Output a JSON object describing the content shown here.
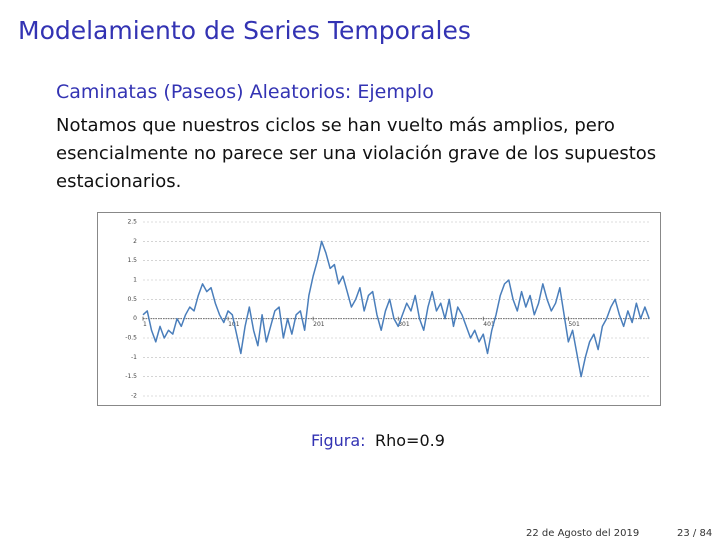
{
  "header": {
    "title": "Modelamiento de Series Temporales"
  },
  "subtitle": "Caminatas (Paseos) Aleatorios: Ejemplo",
  "body_lines": [
    "Notamos que nuestros ciclos se han vuelto más amplios, pero",
    "esencialmente no parece ser una violación grave de los supuestos",
    "estacionarios."
  ],
  "figure": {
    "chart_data": {
      "type": "line",
      "color": "#4a7ebb",
      "x": [
        1,
        6,
        11,
        16,
        21,
        26,
        31,
        36,
        41,
        46,
        51,
        56,
        61,
        66,
        71,
        76,
        81,
        86,
        91,
        96,
        101,
        106,
        111,
        116,
        121,
        126,
        131,
        136,
        141,
        146,
        151,
        156,
        161,
        166,
        171,
        176,
        181,
        186,
        191,
        196,
        201,
        206,
        211,
        216,
        221,
        226,
        231,
        236,
        241,
        246,
        251,
        256,
        261,
        266,
        271,
        276,
        281,
        286,
        291,
        296,
        301,
        306,
        311,
        316,
        321,
        326,
        331,
        336,
        341,
        346,
        351,
        356,
        361,
        366,
        371,
        376,
        381,
        386,
        391,
        396,
        401,
        406,
        411,
        416,
        421,
        426,
        431,
        436,
        441,
        446,
        451,
        456,
        461,
        466,
        471,
        476,
        481,
        486,
        491,
        496,
        501,
        506,
        511,
        516,
        521,
        526,
        531,
        536,
        541,
        546,
        551,
        556,
        561,
        566,
        571,
        576,
        581,
        586,
        591,
        596
      ],
      "values": [
        0.1,
        0.2,
        -0.3,
        -0.6,
        -0.2,
        -0.5,
        -0.3,
        -0.4,
        0.0,
        -0.2,
        0.1,
        0.3,
        0.2,
        0.6,
        0.9,
        0.7,
        0.8,
        0.4,
        0.1,
        -0.1,
        0.2,
        0.1,
        -0.4,
        -0.9,
        -0.2,
        0.3,
        -0.3,
        -0.7,
        0.1,
        -0.6,
        -0.2,
        0.2,
        0.3,
        -0.5,
        0.0,
        -0.4,
        0.1,
        0.2,
        -0.3,
        0.6,
        1.1,
        1.5,
        2.0,
        1.7,
        1.3,
        1.4,
        0.9,
        1.1,
        0.7,
        0.3,
        0.5,
        0.8,
        0.2,
        0.6,
        0.7,
        0.1,
        -0.3,
        0.2,
        0.5,
        0.0,
        -0.2,
        0.1,
        0.4,
        0.2,
        0.6,
        0.0,
        -0.3,
        0.3,
        0.7,
        0.2,
        0.4,
        0.0,
        0.5,
        -0.2,
        0.3,
        0.1,
        -0.2,
        -0.5,
        -0.3,
        -0.6,
        -0.4,
        -0.9,
        -0.3,
        0.1,
        0.6,
        0.9,
        1.0,
        0.5,
        0.2,
        0.7,
        0.3,
        0.6,
        0.1,
        0.4,
        0.9,
        0.5,
        0.2,
        0.4,
        0.8,
        0.1,
        -0.6,
        -0.3,
        -0.9,
        -1.5,
        -1.0,
        -0.6,
        -0.4,
        -0.8,
        -0.2,
        0.0,
        0.3,
        0.5,
        0.1,
        -0.2,
        0.2,
        -0.1,
        0.4,
        0.0,
        0.3,
        0.0
      ],
      "xlim": [
        1,
        597
      ],
      "xticks": [
        1,
        101,
        201,
        301,
        401,
        501
      ],
      "ylim": [
        -2,
        2.5
      ],
      "yticks": [
        2.5,
        2,
        1.5,
        1,
        0.5,
        0,
        -0.5,
        -1,
        -1.5,
        -2
      ],
      "grid": true
    },
    "caption_label": "Figura:",
    "caption": "Rho=0.9"
  },
  "footer": {
    "date": "22 de Agosto del 2019",
    "page": "23 / 84"
  }
}
